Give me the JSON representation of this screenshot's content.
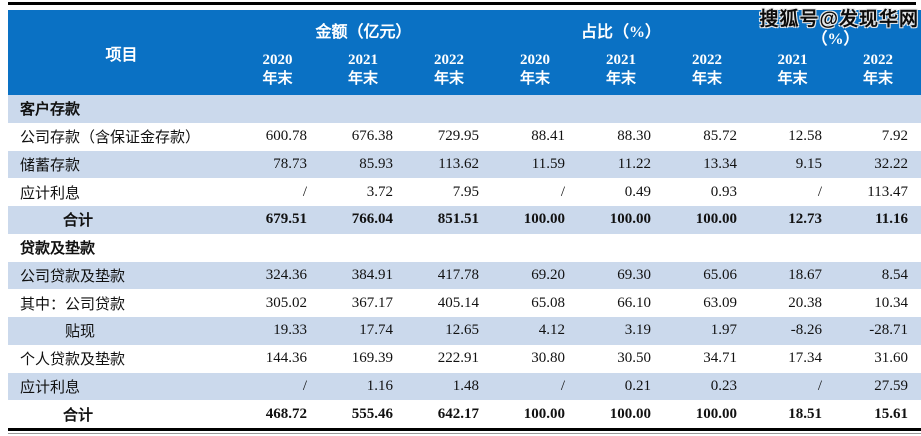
{
  "watermark": "搜狐号@发现华网",
  "colors": {
    "header_blue": "#0a71c4",
    "row_blue": "#cbd9ec",
    "row_white": "#ffffff"
  },
  "table": {
    "item_header": "项目",
    "year_suffix": "年末",
    "groups": [
      {
        "label": "金额（亿元）",
        "cols": [
          "2020",
          "2021",
          "2022"
        ]
      },
      {
        "label": "占比（%）",
        "cols": [
          "2020",
          "2021",
          "2022"
        ]
      },
      {
        "label_line2": "（%）",
        "cols": [
          "2021",
          "2022"
        ]
      }
    ],
    "rows": [
      {
        "type": "section",
        "label": "客户存款",
        "values": [
          "",
          "",
          "",
          "",
          "",
          "",
          "",
          ""
        ]
      },
      {
        "type": "data",
        "label": "公司存款（含保证金存款）",
        "values": [
          "600.78",
          "676.38",
          "729.95",
          "88.41",
          "88.30",
          "85.72",
          "12.58",
          "7.92"
        ]
      },
      {
        "type": "data",
        "label": "储蓄存款",
        "values": [
          "78.73",
          "85.93",
          "113.62",
          "11.59",
          "11.22",
          "13.34",
          "9.15",
          "32.22"
        ]
      },
      {
        "type": "data",
        "label": "应计利息",
        "values": [
          "/",
          "3.72",
          "7.95",
          "/",
          "0.49",
          "0.93",
          "/",
          "113.47"
        ]
      },
      {
        "type": "total",
        "label": "合计",
        "values": [
          "679.51",
          "766.04",
          "851.51",
          "100.00",
          "100.00",
          "100.00",
          "12.73",
          "11.16"
        ]
      },
      {
        "type": "section",
        "label": "贷款及垫款",
        "values": [
          "",
          "",
          "",
          "",
          "",
          "",
          "",
          ""
        ]
      },
      {
        "type": "data",
        "label": "公司贷款及垫款",
        "values": [
          "324.36",
          "384.91",
          "417.78",
          "69.20",
          "69.30",
          "65.06",
          "18.67",
          "8.54"
        ]
      },
      {
        "type": "data",
        "label": "其中：公司贷款",
        "values": [
          "305.02",
          "367.17",
          "405.14",
          "65.08",
          "66.10",
          "63.09",
          "20.38",
          "10.34"
        ]
      },
      {
        "type": "data",
        "label": "贴现",
        "indent": 1,
        "values": [
          "19.33",
          "17.74",
          "12.65",
          "4.12",
          "3.19",
          "1.97",
          "-8.26",
          "-28.71"
        ]
      },
      {
        "type": "data",
        "label": "个人贷款及垫款",
        "values": [
          "144.36",
          "169.39",
          "222.91",
          "30.80",
          "30.50",
          "34.71",
          "17.34",
          "31.60"
        ]
      },
      {
        "type": "data",
        "label": "应计利息",
        "values": [
          "/",
          "1.16",
          "1.48",
          "/",
          "0.21",
          "0.23",
          "/",
          "27.59"
        ]
      },
      {
        "type": "total",
        "label": "合计",
        "values": [
          "468.72",
          "555.46",
          "642.17",
          "100.00",
          "100.00",
          "100.00",
          "18.51",
          "15.61"
        ]
      }
    ]
  }
}
